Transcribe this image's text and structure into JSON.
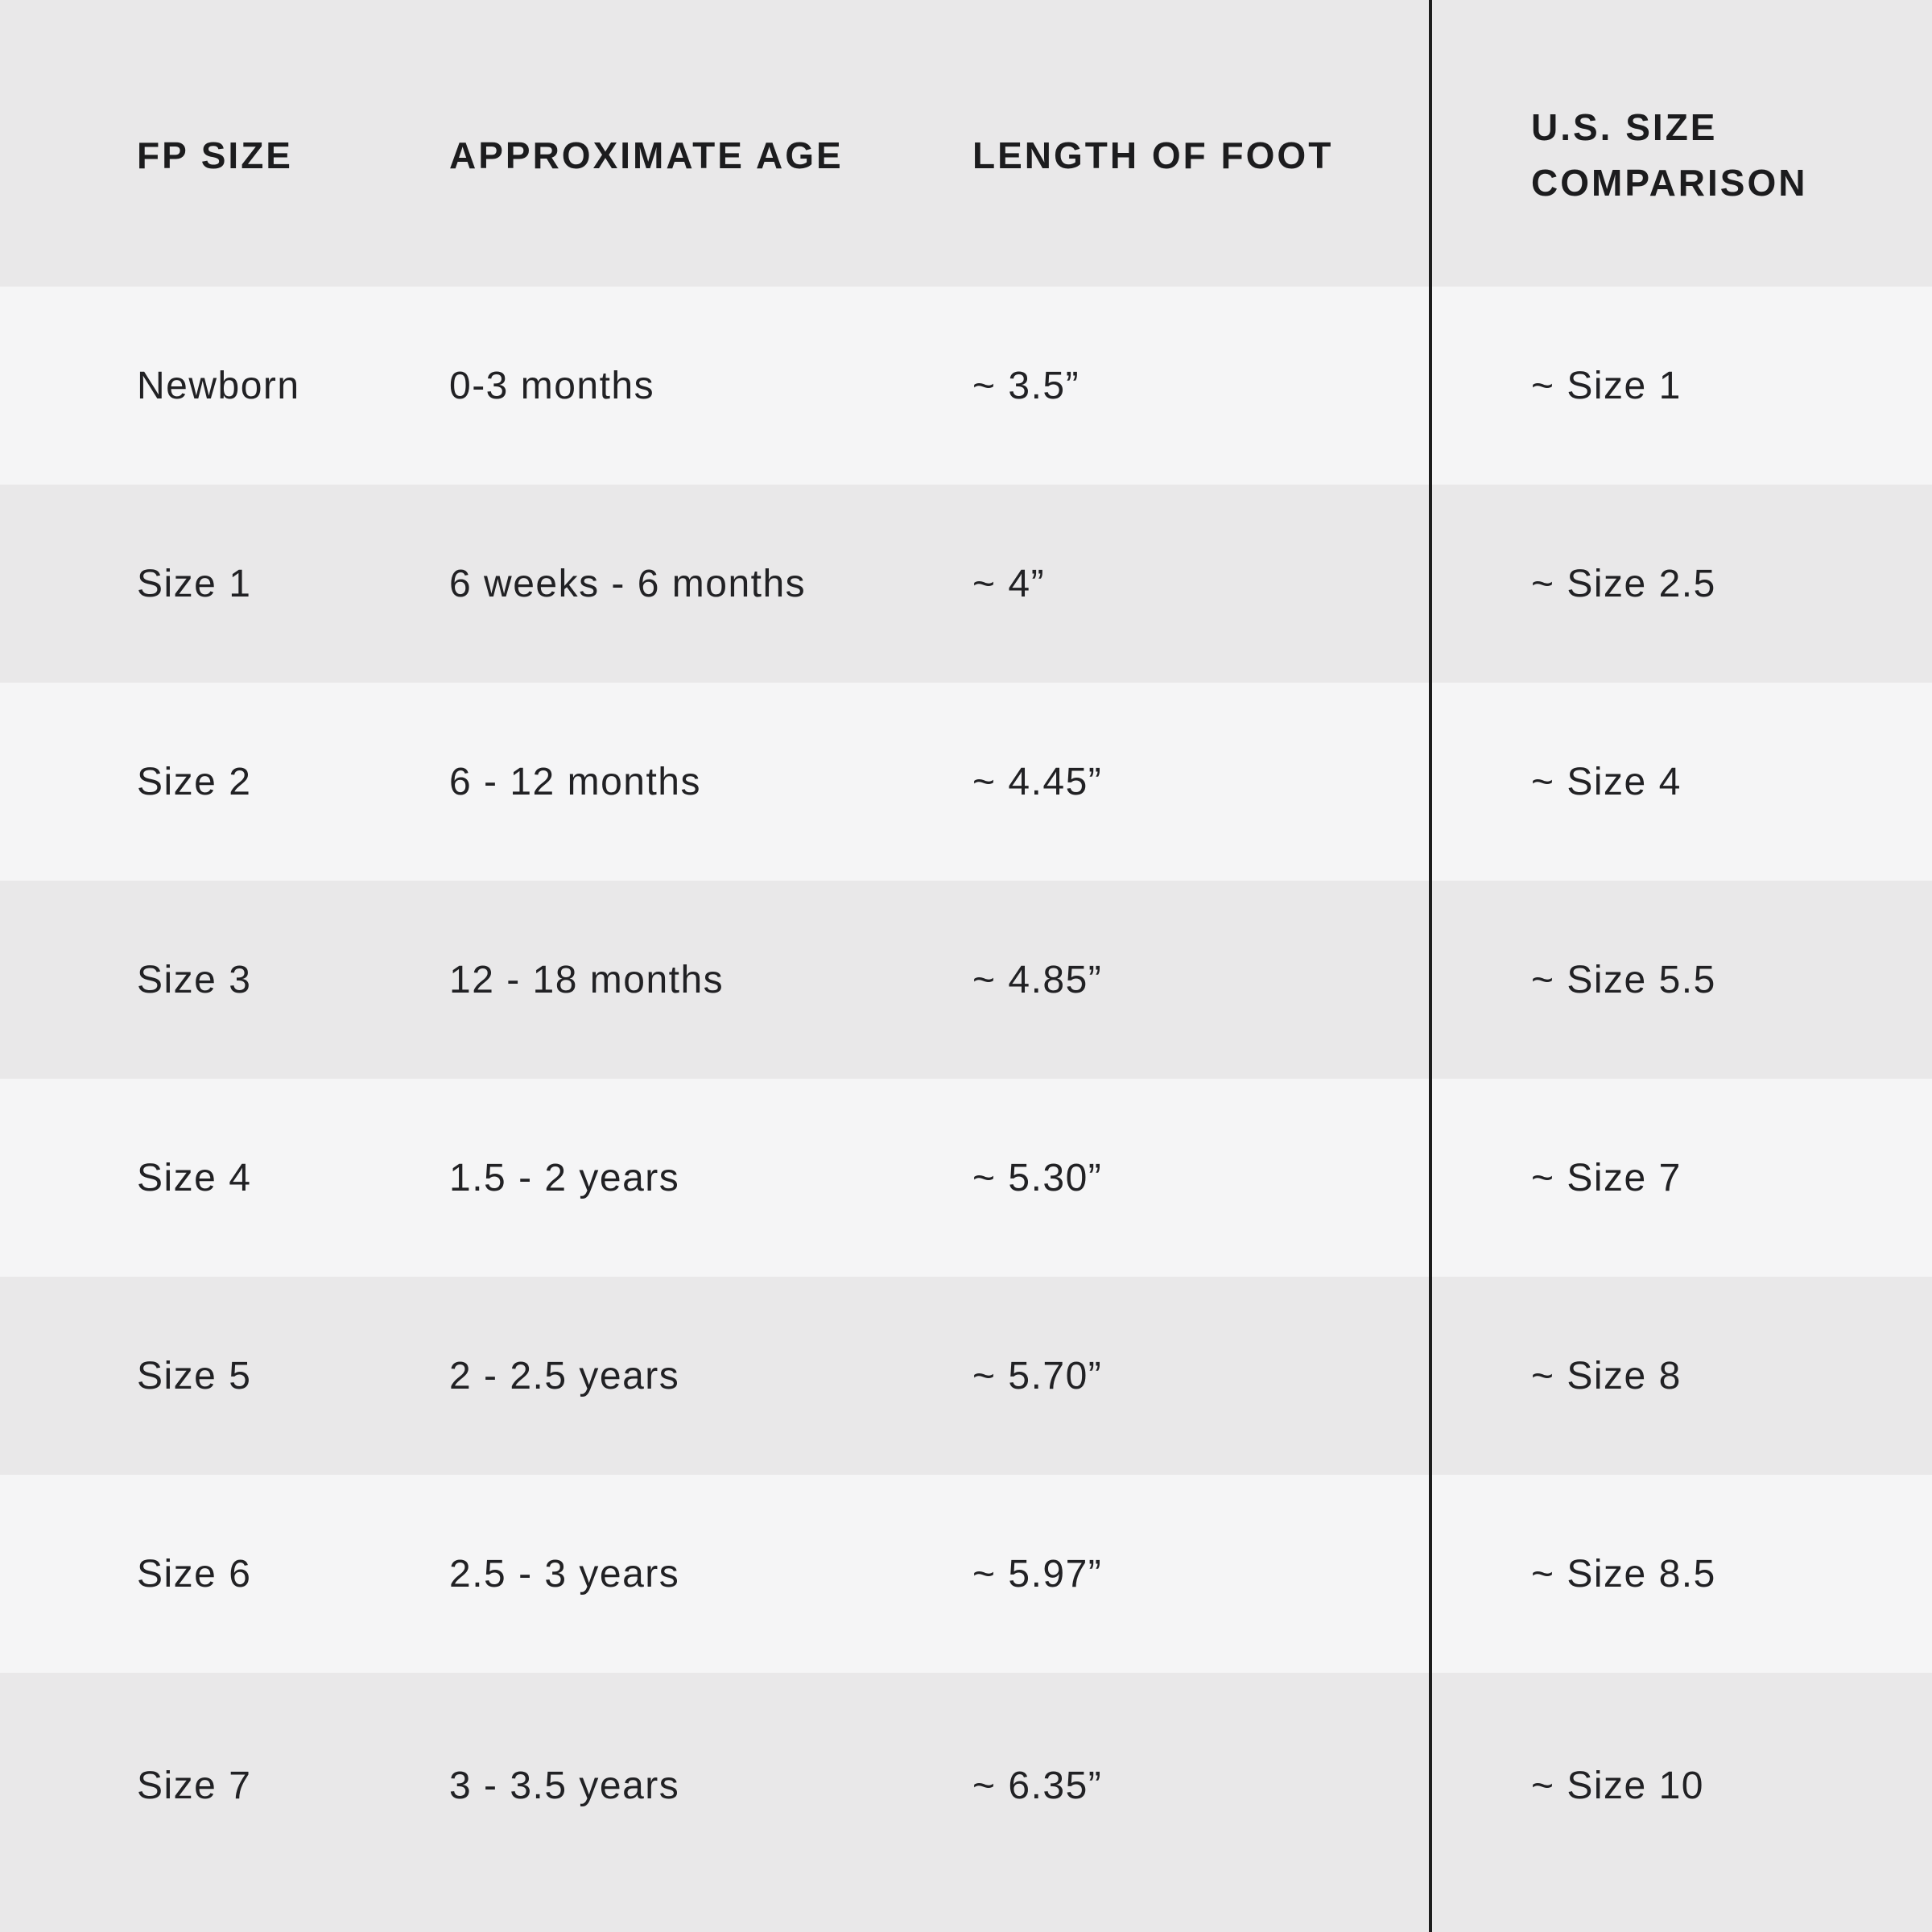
{
  "chart_data": {
    "type": "table",
    "columns": [
      "FP SIZE",
      "APPROXIMATE AGE",
      "LENGTH OF FOOT",
      "U.S. SIZE COMPARISON"
    ],
    "rows": [
      [
        "Newborn",
        "0-3 months",
        "~ 3.5”",
        "~ Size 1"
      ],
      [
        "Size 1",
        "6 weeks - 6 months",
        "~ 4”",
        "~ Size 2.5"
      ],
      [
        "Size 2",
        "6 - 12 months",
        "~ 4.45”",
        "~ Size 4"
      ],
      [
        "Size 3",
        "12 - 18 months",
        "~ 4.85”",
        "~ Size 5.5"
      ],
      [
        "Size 4",
        "1.5 - 2 years",
        "~ 5.30”",
        "~ Size 7"
      ],
      [
        "Size 5",
        "2 - 2.5 years",
        "~ 5.70”",
        "~ Size 8"
      ],
      [
        "Size 6",
        "2.5 - 3 years",
        "~ 5.97”",
        "~ Size 8.5"
      ],
      [
        "Size 7",
        "3 - 3.5 years",
        "~ 6.35”",
        "~ Size 10"
      ]
    ],
    "layout": {
      "row_shading": "alternating",
      "divider_before_column": 3,
      "grid": "off",
      "header_row": true
    }
  },
  "colors": {
    "row_light": "#f5f5f6",
    "row_dark": "#e9e8e9",
    "divider_line": "#1d1d1d",
    "text": "#212124"
  }
}
